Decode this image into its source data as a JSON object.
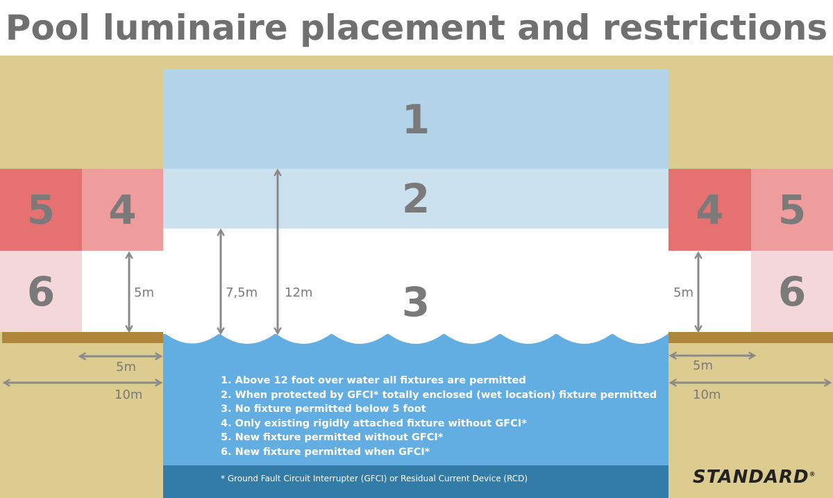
{
  "title": "Pool luminaire placement and restrictions",
  "zones": {
    "z1": "1",
    "z2": "2",
    "z3": "3",
    "z4": "4",
    "z5": "5",
    "z6": "6"
  },
  "dimensions": {
    "d5m": "5m",
    "d75m": "7,5m",
    "d12m": "12m",
    "d10m": "10m"
  },
  "rules": [
    "1. Above 12 foot over water all fixtures are permitted",
    "2. When protected by GFCI* totally enclosed (wet location) fixture permitted",
    "3. No fixture permitted below 5 foot",
    "4. Only existing rigidly attached fixture without GFCI*",
    "5. New fixture permitted without GFCI*",
    "6. New fixture permitted when GFCI*"
  ],
  "footnote": "* Ground Fault Circuit Interrupter (GFCI) or Residual Current Device (RCD)",
  "logo": "STANDARD",
  "colors": {
    "sand": "#ddcc8f",
    "zone1": "#b3d4e8",
    "zone2": "#cbe1ee",
    "water": "#62aee2",
    "water_deep": "#337ca8",
    "zone_dark_red": "#e57170",
    "zone_light_red": "#ef9c9c",
    "zone_pink": "#f3d7da",
    "ground": "#b0863a"
  }
}
